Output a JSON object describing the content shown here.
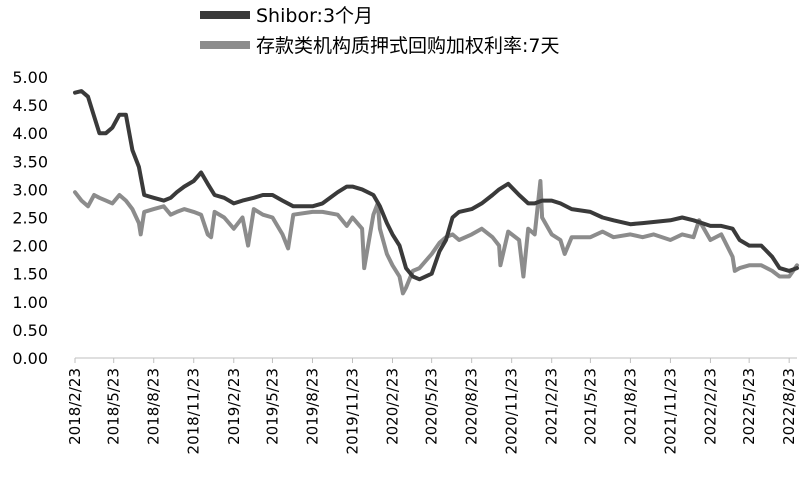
{
  "chart_data": {
    "type": "line",
    "title": "",
    "xlabel": "",
    "ylabel": "",
    "ylim": [
      0,
      5
    ],
    "yticks": [
      "0.00",
      "0.50",
      "1.00",
      "1.50",
      "2.00",
      "2.50",
      "3.00",
      "3.50",
      "4.00",
      "4.50",
      "5.00"
    ],
    "xticks": [
      "2018/2/23",
      "2018/5/23",
      "2018/8/23",
      "2018/11/23",
      "2019/2/23",
      "2019/5/23",
      "2019/8/23",
      "2019/11/23",
      "2020/2/23",
      "2020/5/23",
      "2020/8/23",
      "2020/11/23",
      "2021/2/23",
      "2021/5/23",
      "2021/8/23",
      "2021/11/23",
      "2022/2/23",
      "2022/5/23",
      "2022/8/23"
    ],
    "legend_position": "top",
    "grid": false,
    "series": [
      {
        "name": "Shibor:3个月",
        "color": "#3a3a3a",
        "points": [
          [
            "2018/2/23",
            4.72
          ],
          [
            "2018/3/10",
            4.75
          ],
          [
            "2018/3/25",
            4.65
          ],
          [
            "2018/4/8",
            4.3
          ],
          [
            "2018/4/20",
            4.0
          ],
          [
            "2018/5/5",
            4.0
          ],
          [
            "2018/5/20",
            4.1
          ],
          [
            "2018/6/5",
            4.33
          ],
          [
            "2018/6/20",
            4.33
          ],
          [
            "2018/7/5",
            3.7
          ],
          [
            "2018/7/20",
            3.4
          ],
          [
            "2018/8/1",
            2.9
          ],
          [
            "2018/8/23",
            2.85
          ],
          [
            "2018/9/15",
            2.8
          ],
          [
            "2018/10/1",
            2.85
          ],
          [
            "2018/10/15",
            2.95
          ],
          [
            "2018/11/1",
            3.05
          ],
          [
            "2018/11/23",
            3.15
          ],
          [
            "2018/12/10",
            3.3
          ],
          [
            "2018/12/25",
            3.1
          ],
          [
            "2019/1/10",
            2.9
          ],
          [
            "2019/2/1",
            2.85
          ],
          [
            "2019/2/23",
            2.75
          ],
          [
            "2019/3/15",
            2.8
          ],
          [
            "2019/4/10",
            2.85
          ],
          [
            "2019/5/1",
            2.9
          ],
          [
            "2019/5/23",
            2.9
          ],
          [
            "2019/6/15",
            2.8
          ],
          [
            "2019/7/10",
            2.7
          ],
          [
            "2019/8/23",
            2.7
          ],
          [
            "2019/9/15",
            2.75
          ],
          [
            "2019/10/20",
            2.95
          ],
          [
            "2019/11/10",
            3.05
          ],
          [
            "2019/11/23",
            3.05
          ],
          [
            "2019/12/15",
            3.0
          ],
          [
            "2020/1/10",
            2.9
          ],
          [
            "2020/1/25",
            2.7
          ],
          [
            "2020/2/10",
            2.4
          ],
          [
            "2020/2/23",
            2.2
          ],
          [
            "2020/3/10",
            2.0
          ],
          [
            "2020/3/25",
            1.6
          ],
          [
            "2020/4/10",
            1.45
          ],
          [
            "2020/4/25",
            1.4
          ],
          [
            "2020/5/23",
            1.5
          ],
          [
            "2020/6/10",
            1.9
          ],
          [
            "2020/6/25",
            2.1
          ],
          [
            "2020/7/10",
            2.5
          ],
          [
            "2020/7/25",
            2.6
          ],
          [
            "2020/8/23",
            2.65
          ],
          [
            "2020/9/15",
            2.75
          ],
          [
            "2020/10/10",
            2.9
          ],
          [
            "2020/10/25",
            3.0
          ],
          [
            "2020/11/15",
            3.1
          ],
          [
            "2020/12/10",
            2.9
          ],
          [
            "2020/12/31",
            2.75
          ],
          [
            "2021/1/15",
            2.75
          ],
          [
            "2021/2/1",
            2.8
          ],
          [
            "2021/2/23",
            2.8
          ],
          [
            "2021/3/15",
            2.75
          ],
          [
            "2021/4/10",
            2.65
          ],
          [
            "2021/5/23",
            2.6
          ],
          [
            "2021/6/20",
            2.5
          ],
          [
            "2021/7/15",
            2.45
          ],
          [
            "2021/8/23",
            2.38
          ],
          [
            "2021/9/20",
            2.4
          ],
          [
            "2021/10/15",
            2.42
          ],
          [
            "2021/11/23",
            2.45
          ],
          [
            "2021/12/20",
            2.5
          ],
          [
            "2022/1/15",
            2.45
          ],
          [
            "2022/2/23",
            2.35
          ],
          [
            "2022/3/20",
            2.35
          ],
          [
            "2022/4/15",
            2.3
          ],
          [
            "2022/5/1",
            2.1
          ],
          [
            "2022/5/23",
            2.0
          ],
          [
            "2022/6/20",
            2.0
          ],
          [
            "2022/7/15",
            1.8
          ],
          [
            "2022/8/1",
            1.6
          ],
          [
            "2022/8/23",
            1.55
          ],
          [
            "2022/9/10",
            1.6
          ]
        ]
      },
      {
        "name": "存款类机构质押式回购加权利率:7天",
        "color": "#8c8c8c",
        "points": [
          [
            "2018/2/23",
            2.95
          ],
          [
            "2018/3/10",
            2.8
          ],
          [
            "2018/3/25",
            2.7
          ],
          [
            "2018/4/8",
            2.9
          ],
          [
            "2018/4/20",
            2.85
          ],
          [
            "2018/5/5",
            2.8
          ],
          [
            "2018/5/20",
            2.75
          ],
          [
            "2018/6/5",
            2.9
          ],
          [
            "2018/6/20",
            2.8
          ],
          [
            "2018/7/5",
            2.65
          ],
          [
            "2018/7/20",
            2.4
          ],
          [
            "2018/8/1",
            2.6
          ],
          [
            "2018/8/23",
            2.65
          ],
          [
            "2018/9/15",
            2.7
          ],
          [
            "2018/10/1",
            2.55
          ],
          [
            "2018/10/15",
            2.6
          ],
          [
            "2018/11/1",
            2.65
          ],
          [
            "2018/11/23",
            2.6
          ],
          [
            "2018/12/10",
            2.55
          ],
          [
            "2018/12/25",
            2.2
          ],
          [
            "2019/1/10",
            2.6
          ],
          [
            "2019/2/1",
            2.5
          ],
          [
            "2019/2/23",
            2.3
          ],
          [
            "2019/3/15",
            2.5
          ],
          [
            "2019/4/10",
            2.65
          ],
          [
            "2019/5/1",
            2.55
          ],
          [
            "2019/5/23",
            2.5
          ],
          [
            "2019/6/15",
            2.2
          ],
          [
            "2019/7/10",
            2.55
          ],
          [
            "2019/8/23",
            2.6
          ],
          [
            "2019/9/15",
            2.6
          ],
          [
            "2019/10/20",
            2.55
          ],
          [
            "2019/11/10",
            2.35
          ],
          [
            "2019/11/23",
            2.5
          ],
          [
            "2019/12/15",
            2.3
          ],
          [
            "2020/1/10",
            2.55
          ],
          [
            "2020/1/25",
            2.3
          ],
          [
            "2020/2/10",
            1.85
          ],
          [
            "2020/2/23",
            1.65
          ],
          [
            "2020/3/10",
            1.45
          ],
          [
            "2020/3/25",
            1.25
          ],
          [
            "2020/4/10",
            1.55
          ],
          [
            "2020/4/25",
            1.6
          ],
          [
            "2020/5/23",
            1.85
          ],
          [
            "2020/6/10",
            2.05
          ],
          [
            "2020/6/25",
            2.15
          ],
          [
            "2020/7/10",
            2.2
          ],
          [
            "2020/7/25",
            2.1
          ],
          [
            "2020/8/23",
            2.2
          ],
          [
            "2020/9/15",
            2.3
          ],
          [
            "2020/10/10",
            2.15
          ],
          [
            "2020/10/25",
            2.0
          ],
          [
            "2020/11/15",
            2.25
          ],
          [
            "2020/12/10",
            2.1
          ],
          [
            "2020/12/31",
            2.3
          ],
          [
            "2021/1/15",
            2.2
          ],
          [
            "2021/2/1",
            2.5
          ],
          [
            "2021/2/23",
            2.2
          ],
          [
            "2021/3/15",
            2.1
          ],
          [
            "2021/4/10",
            2.15
          ],
          [
            "2021/5/23",
            2.15
          ],
          [
            "2021/6/20",
            2.25
          ],
          [
            "2021/7/15",
            2.15
          ],
          [
            "2021/8/23",
            2.2
          ],
          [
            "2021/9/20",
            2.15
          ],
          [
            "2021/10/15",
            2.2
          ],
          [
            "2021/11/23",
            2.1
          ],
          [
            "2021/12/20",
            2.2
          ],
          [
            "2022/1/15",
            2.15
          ],
          [
            "2022/2/23",
            2.1
          ],
          [
            "2022/3/20",
            2.2
          ],
          [
            "2022/4/15",
            1.8
          ],
          [
            "2022/5/1",
            1.6
          ],
          [
            "2022/5/23",
            1.65
          ],
          [
            "2022/6/20",
            1.65
          ],
          [
            "2022/7/15",
            1.55
          ],
          [
            "2022/8/1",
            1.45
          ],
          [
            "2022/8/23",
            1.45
          ],
          [
            "2022/9/10",
            1.65
          ]
        ],
        "spikes": [
          [
            "2018/7/24",
            2.2
          ],
          [
            "2019/1/2",
            2.15
          ],
          [
            "2019/3/28",
            2.0
          ],
          [
            "2019/6/28",
            1.95
          ],
          [
            "2019/12/20",
            1.6
          ],
          [
            "2020/1/20",
            2.75
          ],
          [
            "2020/3/18",
            1.15
          ],
          [
            "2020/10/28",
            1.65
          ],
          [
            "2020/12/20",
            1.45
          ],
          [
            "2021/1/28",
            3.15
          ],
          [
            "2021/3/25",
            1.85
          ],
          [
            "2022/1/28",
            2.45
          ],
          [
            "2022/4/20",
            1.55
          ]
        ]
      }
    ]
  }
}
